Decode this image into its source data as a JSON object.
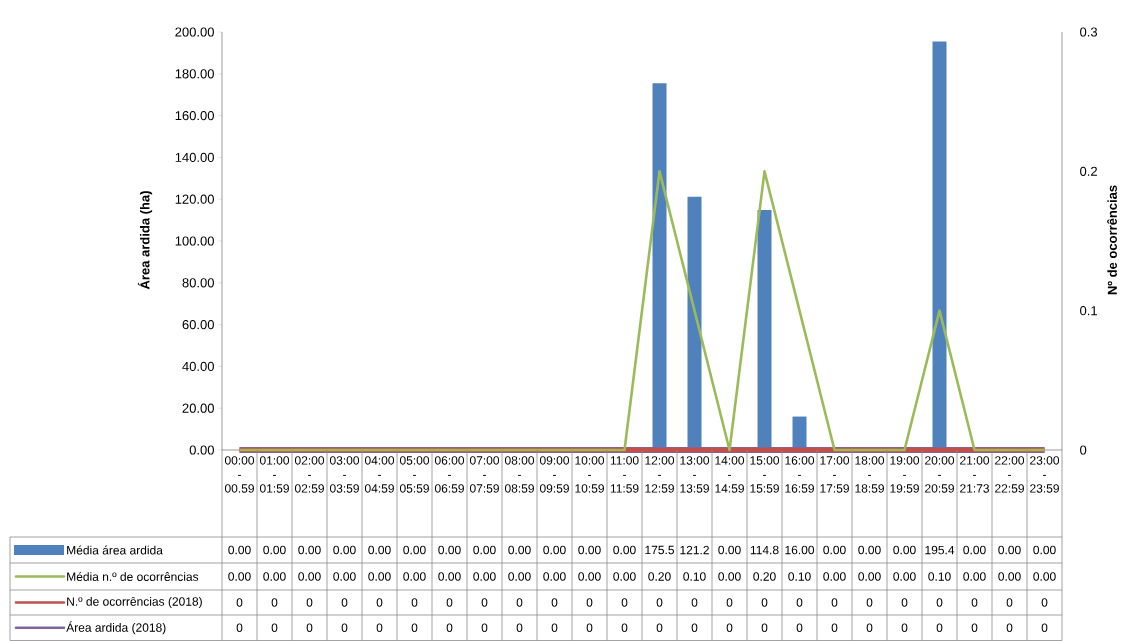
{
  "chart_data": {
    "type": "bar",
    "categories": [
      "00:00 - 00.59",
      "01:00 - 01:59",
      "02:00 - 02:59",
      "03:00 - 03:59",
      "04:00 - 04:59",
      "05:00 - 05:59",
      "06:00 - 06:59",
      "07:00 - 07:59",
      "08:00 - 08:59",
      "09:00 - 09:59",
      "10:00 - 10:59",
      "11:00 - 11:59",
      "12:00 - 12:59",
      "13:00 - 13:59",
      "14:00 - 14:59",
      "15:00 - 15:59",
      "16:00 - 16:59",
      "17:00 - 17:59",
      "18:00 - 18:59",
      "19:00 - 19:59",
      "20:00 - 20:59",
      "21:00 - 21:73",
      "22:00 - 22:59",
      "23:00 - 23:59"
    ],
    "series": [
      {
        "name": "Média área ardida",
        "axis": "y",
        "color": "#4f81bd",
        "values": [
          0,
          0,
          0,
          0,
          0,
          0,
          0,
          0,
          0,
          0,
          0,
          0,
          175.5,
          121.2,
          0,
          114.8,
          16,
          0,
          0,
          0,
          195.4,
          0,
          0,
          0
        ],
        "value_labels": [
          "0.00",
          "0.00",
          "0.00",
          "0.00",
          "0.00",
          "0.00",
          "0.00",
          "0.00",
          "0.00",
          "0.00",
          "0.00",
          "0.00",
          "175.5",
          "121.2",
          "0.00",
          "114.8",
          "16.00",
          "0.00",
          "0.00",
          "0.00",
          "195.4",
          "0.00",
          "0.00",
          "0.00"
        ]
      },
      {
        "name": "Média n.º de ocorrências",
        "type": "line",
        "axis": "y2",
        "color": "#9bbb59",
        "values": [
          0,
          0,
          0,
          0,
          0,
          0,
          0,
          0,
          0,
          0,
          0,
          0,
          0.2,
          0.1,
          0,
          0.2,
          0.1,
          0,
          0,
          0,
          0.1,
          0,
          0,
          0
        ],
        "value_labels": [
          "0.00",
          "0.00",
          "0.00",
          "0.00",
          "0.00",
          "0.00",
          "0.00",
          "0.00",
          "0.00",
          "0.00",
          "0.00",
          "0.00",
          "0.20",
          "0.10",
          "0.00",
          "0.20",
          "0.10",
          "0.00",
          "0.00",
          "0.00",
          "0.10",
          "0.00",
          "0.00",
          "0.00"
        ]
      },
      {
        "name": "N.º de ocorrências (2018)",
        "type": "line",
        "axis": "y2",
        "color": "#c0504d",
        "values": [
          0,
          0,
          0,
          0,
          0,
          0,
          0,
          0,
          0,
          0,
          0,
          0,
          0,
          0,
          0,
          0,
          0,
          0,
          0,
          0,
          0,
          0,
          0,
          0
        ],
        "value_labels": [
          "0",
          "0",
          "0",
          "0",
          "0",
          "0",
          "0",
          "0",
          "0",
          "0",
          "0",
          "0",
          "0",
          "0",
          "0",
          "0",
          "0",
          "0",
          "0",
          "0",
          "0",
          "0",
          "0",
          "0"
        ]
      },
      {
        "name": "Área ardida (2018)",
        "type": "line",
        "axis": "y",
        "color": "#8064a2",
        "values": [
          0,
          0,
          0,
          0,
          0,
          0,
          0,
          0,
          0,
          0,
          0,
          0,
          0,
          0,
          0,
          0,
          0,
          0,
          0,
          0,
          0,
          0,
          0,
          0
        ],
        "value_labels": [
          "0",
          "0",
          "0",
          "0",
          "0",
          "0",
          "0",
          "0",
          "0",
          "0",
          "0",
          "0",
          "0",
          "0",
          "0",
          "0",
          "0",
          "0",
          "0",
          "0",
          "0",
          "0",
          "0",
          "0"
        ]
      }
    ],
    "ylabel": "Área ardida  (ha)",
    "y2label": "Nº de ocorrências",
    "ylim": [
      0,
      200
    ],
    "yticks": [
      {
        "value": 0,
        "label": "0.00"
      },
      {
        "value": 20,
        "label": "20.00"
      },
      {
        "value": 40,
        "label": "40.00"
      },
      {
        "value": 60,
        "label": "60.00"
      },
      {
        "value": 80,
        "label": "80.00"
      },
      {
        "value": 100,
        "label": "100.00"
      },
      {
        "value": 120,
        "label": "120.00"
      },
      {
        "value": 140,
        "label": "140.00"
      },
      {
        "value": 160,
        "label": "160.00"
      },
      {
        "value": 180,
        "label": "180.00"
      },
      {
        "value": 200,
        "label": "200.00"
      }
    ],
    "y2lim": [
      0,
      0.3
    ],
    "y2ticks": [
      0,
      0.1,
      0.2,
      0.3
    ],
    "legend": "bottom"
  }
}
